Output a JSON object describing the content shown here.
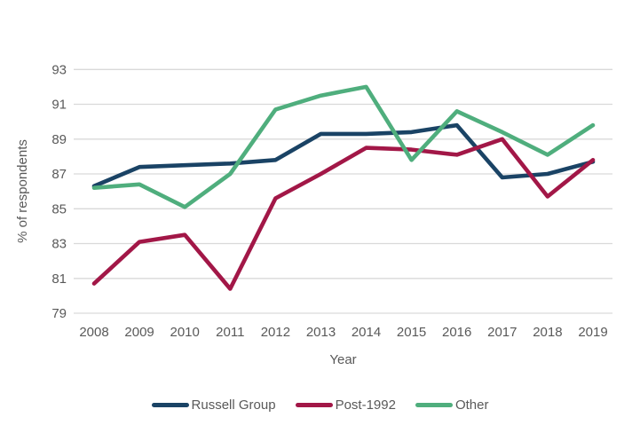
{
  "chart_data": {
    "type": "line",
    "title": "",
    "xlabel": "Year",
    "ylabel": "% of respondents",
    "x": [
      2008,
      2009,
      2010,
      2011,
      2012,
      2013,
      2014,
      2015,
      2016,
      2017,
      2018,
      2019
    ],
    "ylim": [
      79,
      93
    ],
    "yticks": [
      79,
      81,
      83,
      85,
      87,
      89,
      91,
      93
    ],
    "grid": "horizontal",
    "legend_position": "bottom",
    "series": [
      {
        "name": "Russell Group",
        "color": "#1A4365",
        "values": [
          86.3,
          87.4,
          87.5,
          87.6,
          87.8,
          89.3,
          89.3,
          89.4,
          89.8,
          86.8,
          87.0,
          87.7
        ]
      },
      {
        "name": "Post-1992",
        "color": "#A21747",
        "values": [
          80.7,
          83.1,
          83.5,
          80.4,
          85.6,
          87.0,
          88.5,
          88.4,
          88.1,
          89.0,
          85.7,
          87.8
        ]
      },
      {
        "name": "Other",
        "color": "#4FAE7D",
        "values": [
          86.2,
          86.4,
          85.1,
          87.0,
          90.7,
          91.5,
          92.0,
          87.8,
          90.6,
          89.4,
          88.1,
          89.8
        ]
      }
    ]
  },
  "style": {
    "grid_color": "#D9D9D9",
    "text_color": "#595959",
    "background": "#FFFFFF"
  }
}
